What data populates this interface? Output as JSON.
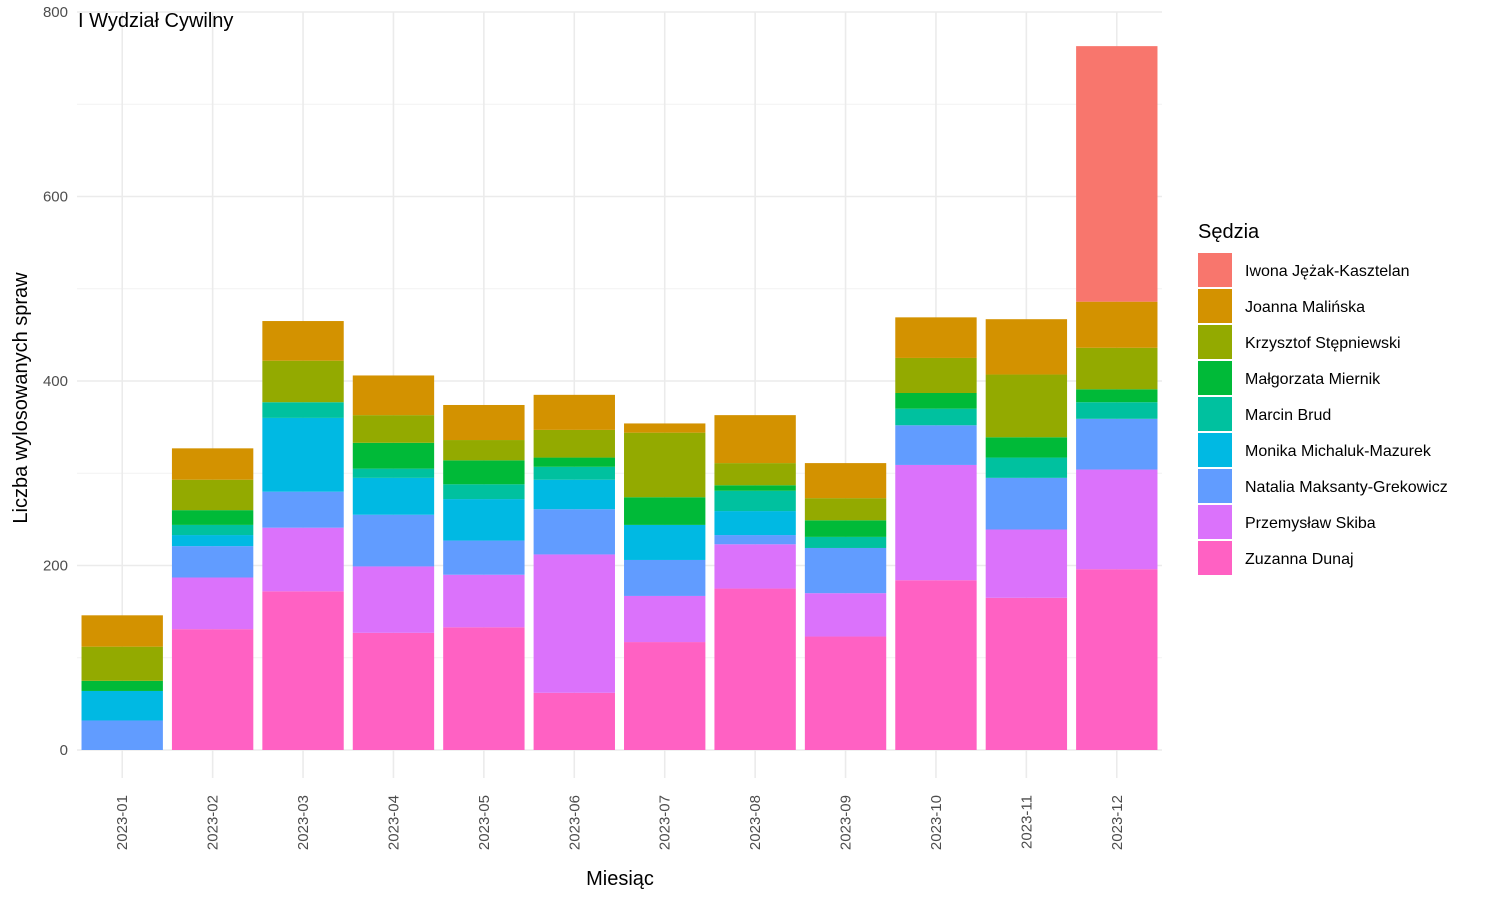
{
  "chart_data": {
    "type": "bar",
    "stacked": true,
    "title": "I Wydział Cywilny",
    "xlabel": "Miesiąc",
    "ylabel": "Liczba wylosowanych spraw",
    "ylim": [
      0,
      800
    ],
    "yticks": [
      0,
      200,
      400,
      600,
      800
    ],
    "grid": true,
    "legend_title": "Sędzia",
    "legend_position": "right",
    "categories": [
      "2023-01",
      "2023-02",
      "2023-03",
      "2023-04",
      "2023-05",
      "2023-06",
      "2023-07",
      "2023-08",
      "2023-09",
      "2023-10",
      "2023-11",
      "2023-12"
    ],
    "series": [
      {
        "name": "Iwona Jężak-Kasztelan",
        "color": "#F8766D",
        "values": [
          0,
          0,
          0,
          0,
          0,
          0,
          0,
          0,
          0,
          0,
          0,
          277
        ]
      },
      {
        "name": "Joanna Malińska",
        "color": "#D39200",
        "values": [
          34,
          34,
          43,
          43,
          38,
          38,
          10,
          52,
          38,
          44,
          60,
          50
        ]
      },
      {
        "name": "Krzysztof Stępniewski",
        "color": "#93AA00",
        "values": [
          37,
          33,
          45,
          30,
          22,
          30,
          70,
          24,
          24,
          38,
          68,
          45
        ]
      },
      {
        "name": "Małgorzata Miernik",
        "color": "#00BA38",
        "values": [
          11,
          16,
          0,
          28,
          26,
          10,
          30,
          6,
          18,
          17,
          22,
          14
        ]
      },
      {
        "name": "Marcin Brud",
        "color": "#00C19F",
        "values": [
          0,
          11,
          17,
          10,
          16,
          14,
          0,
          22,
          12,
          18,
          22,
          18
        ]
      },
      {
        "name": "Monika Michaluk-Mazurek",
        "color": "#00B9E3",
        "values": [
          32,
          12,
          80,
          40,
          45,
          32,
          38,
          26,
          0,
          0,
          0,
          0
        ]
      },
      {
        "name": "Natalia Maksanty-Grekowicz",
        "color": "#619CFF",
        "values": [
          32,
          34,
          39,
          56,
          37,
          49,
          39,
          10,
          49,
          43,
          56,
          55
        ]
      },
      {
        "name": "Przemysław Skiba",
        "color": "#DB72FB",
        "values": [
          0,
          56,
          69,
          72,
          57,
          150,
          50,
          48,
          47,
          125,
          74,
          108
        ]
      },
      {
        "name": "Zuzanna Dunaj",
        "color": "#FF61C3",
        "values": [
          0,
          131,
          172,
          127,
          133,
          62,
          117,
          175,
          123,
          184,
          165,
          196
        ]
      }
    ]
  }
}
